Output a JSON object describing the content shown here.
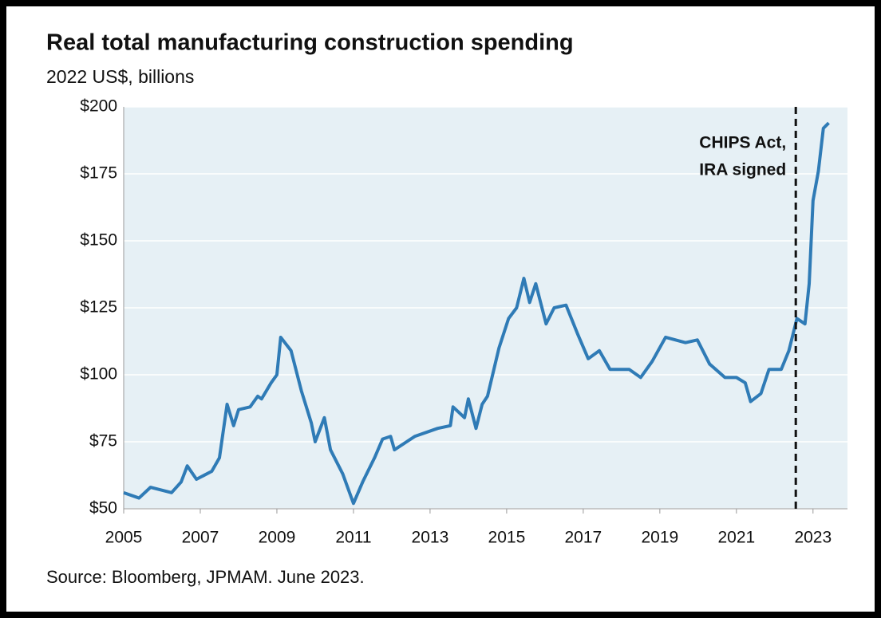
{
  "chart_data": {
    "type": "line",
    "title": "Real total manufacturing construction spending",
    "subtitle": "2022 US$, billions",
    "source": "Source: Bloomberg, JPMAM. June 2023.",
    "x": [
      2005.0,
      2005.4,
      2005.7,
      2006.25,
      2006.5,
      2006.66,
      2006.9,
      2007.3,
      2007.5,
      2007.7,
      2007.87,
      2008.0,
      2008.3,
      2008.5,
      2008.6,
      2008.85,
      2009.0,
      2009.1,
      2009.37,
      2009.64,
      2009.9,
      2010.0,
      2010.24,
      2010.4,
      2010.72,
      2011.0,
      2011.24,
      2011.55,
      2011.76,
      2011.97,
      2012.07,
      2012.6,
      2013.2,
      2013.53,
      2013.6,
      2013.9,
      2014.0,
      2014.2,
      2014.36,
      2014.5,
      2014.8,
      2015.05,
      2015.26,
      2015.45,
      2015.6,
      2015.76,
      2016.03,
      2016.24,
      2016.55,
      2016.86,
      2017.13,
      2017.42,
      2017.7,
      2018.2,
      2018.5,
      2018.8,
      2019.15,
      2019.67,
      2019.98,
      2020.3,
      2020.7,
      2021.0,
      2021.23,
      2021.37,
      2021.64,
      2021.85,
      2022.17,
      2022.37,
      2022.58,
      2022.79,
      2022.9,
      2023.0,
      2023.14,
      2023.27,
      2023.41
    ],
    "series": [
      {
        "name": "Real total manufacturing construction spending",
        "color": "#2f7bb6",
        "values": [
          56,
          54,
          58,
          56,
          60,
          66,
          61,
          64,
          69,
          89,
          81,
          87,
          88,
          92,
          91,
          97,
          100,
          114,
          109,
          94,
          82,
          75,
          84,
          72,
          63,
          52,
          60,
          69,
          76,
          77,
          72,
          77,
          80,
          81,
          88,
          84,
          91,
          80,
          89,
          92,
          110,
          121,
          125,
          136,
          127,
          134,
          119,
          125,
          126,
          115,
          106,
          109,
          102,
          102,
          99,
          105,
          114,
          112,
          113,
          104,
          99,
          99,
          97,
          90,
          93,
          102,
          102,
          109,
          121,
          119,
          134,
          165,
          176,
          192,
          194
        ]
      }
    ],
    "xlim": [
      2005,
      2023.9
    ],
    "xticks": [
      2005,
      2007,
      2009,
      2011,
      2013,
      2015,
      2017,
      2019,
      2021,
      2023
    ],
    "ylim": [
      50,
      200
    ],
    "yticks": [
      {
        "value": 50,
        "label": "$50"
      },
      {
        "value": 75,
        "label": "$75"
      },
      {
        "value": 100,
        "label": "$100"
      },
      {
        "value": 125,
        "label": "$125"
      },
      {
        "value": 150,
        "label": "$150"
      },
      {
        "value": 175,
        "label": "$175"
      },
      {
        "value": 200,
        "label": "$200"
      }
    ],
    "grid": true,
    "annotations": [
      {
        "lines": [
          "CHIPS Act,",
          "IRA signed"
        ],
        "x": 2022.55
      }
    ]
  }
}
